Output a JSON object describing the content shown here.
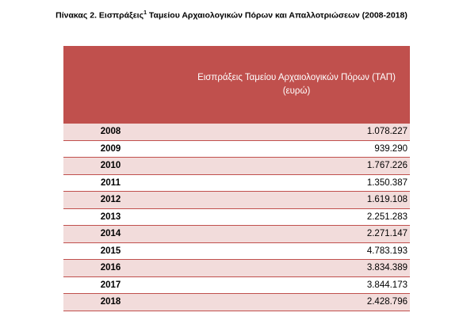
{
  "header": {
    "title_start": "Πίνακας 2. Εισπράξεις",
    "title_sup": "1",
    "title_end": " Ταμείου Αρχαιολογικών Πόρων και Απαλλοτριώσεων (2008-2018)"
  },
  "table": {
    "column_header": "Εισπράξεις Ταμείου Αρχαιολογικών Πόρων (ΤΑΠ) (ευρώ)",
    "rows": [
      [
        "2008",
        "1.078.227"
      ],
      [
        "2009",
        "939.290"
      ],
      [
        "2010",
        "1.767.226"
      ],
      [
        "2011",
        "1.350.387"
      ],
      [
        "2012",
        "1.619.108"
      ],
      [
        "2013",
        "2.251.283"
      ],
      [
        "2014",
        "2.271.147"
      ],
      [
        "2015",
        "4.783.193"
      ],
      [
        "2016",
        "3.834.389"
      ],
      [
        "2017",
        "3.844.173"
      ],
      [
        "2018",
        "2.428.796"
      ]
    ]
  }
}
